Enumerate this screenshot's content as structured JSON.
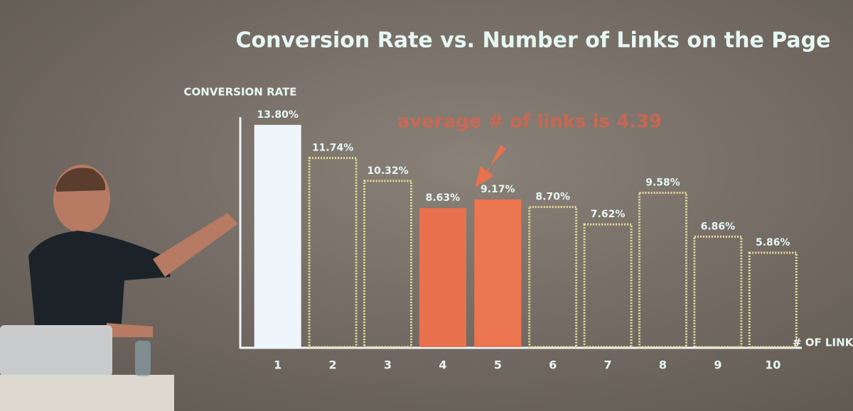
{
  "chart_data": {
    "type": "bar",
    "title": "Conversion Rate vs. Number of Links on the Page",
    "y_label": "CONVERSION RATE",
    "x_label": "# OF LINKS",
    "annotation": "average # of links is 4.39",
    "categories": [
      "1",
      "2",
      "3",
      "4",
      "5",
      "6",
      "7",
      "8",
      "9",
      "10"
    ],
    "values": [
      13.8,
      11.74,
      10.32,
      8.63,
      9.17,
      8.7,
      7.62,
      9.58,
      6.86,
      5.86
    ],
    "value_labels": [
      "13.80%",
      "11.74%",
      "10.32%",
      "8.63%",
      "9.17%",
      "8.70%",
      "7.62%",
      "9.58%",
      "6.86%",
      "5.86%"
    ],
    "colors": [
      "#eef6fb",
      "#e9df9c",
      "#e9df9c",
      "#e9714d",
      "#ec7650",
      "#e9df9c",
      "#e9df9c",
      "#e9df9c",
      "#e9df9c",
      "#e9df9c"
    ],
    "filled": [
      true,
      false,
      false,
      true,
      true,
      false,
      false,
      false,
      false,
      false
    ],
    "ylim": [
      0,
      14.5
    ]
  }
}
